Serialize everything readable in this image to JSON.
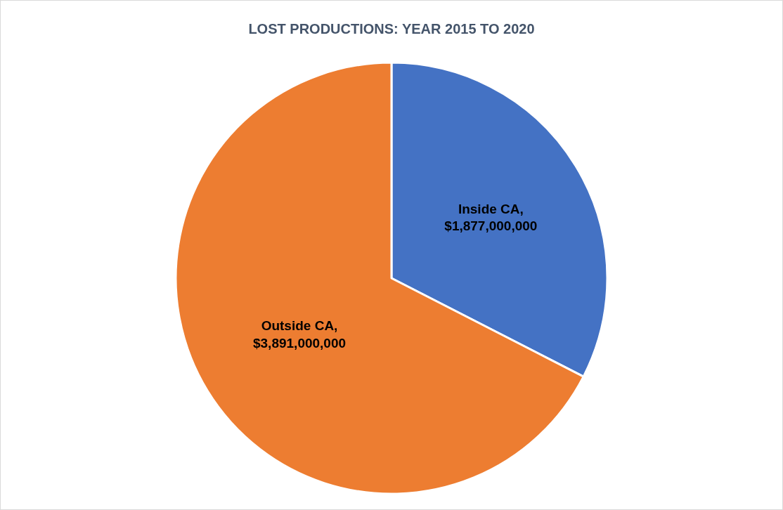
{
  "chart_data": {
    "type": "pie",
    "title": "LOST PRODUCTIONS: YEAR 2015 TO 2020",
    "categories": [
      "Inside CA",
      "Outside CA"
    ],
    "values": [
      1877000000,
      3891000000
    ],
    "colors": [
      "#4472c4",
      "#ed7d31"
    ],
    "value_labels": [
      ",\n$1,877,000,000",
      ",\n$3,891,000,000"
    ],
    "legend": false
  }
}
